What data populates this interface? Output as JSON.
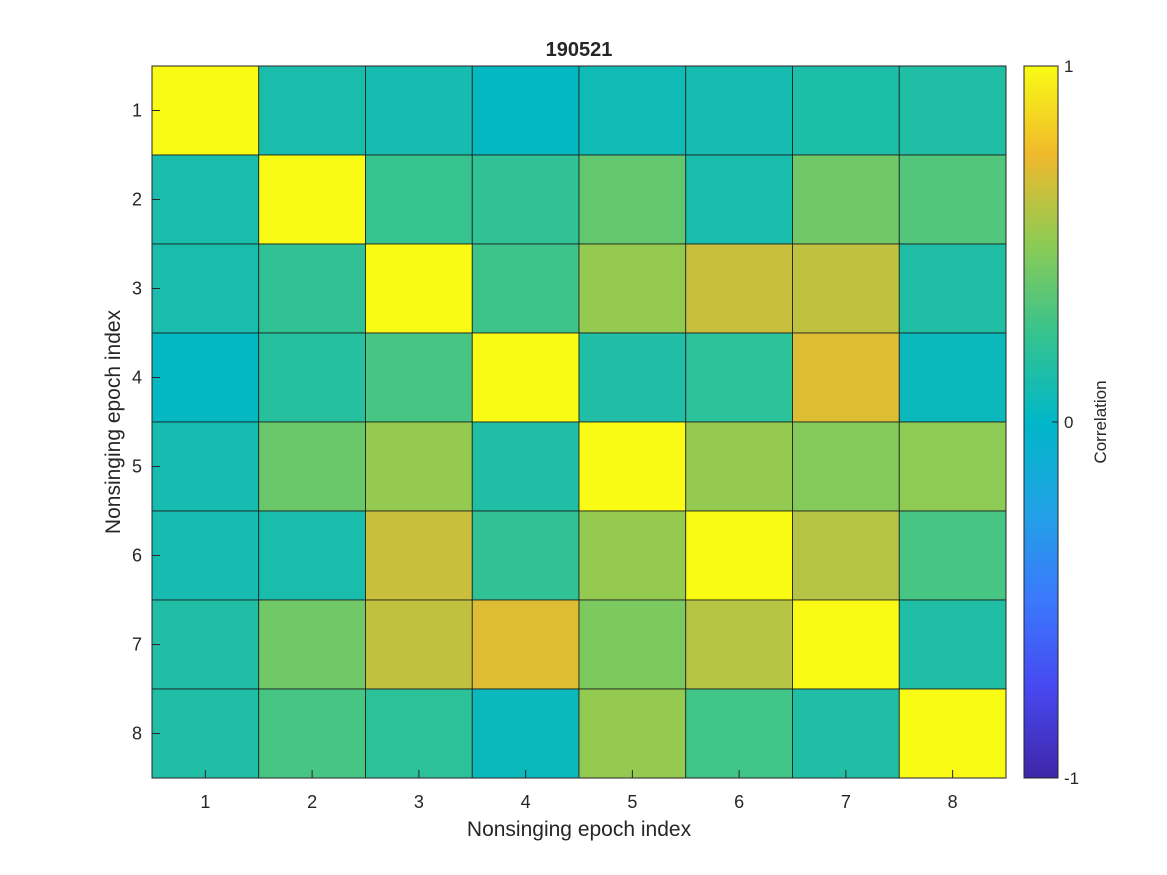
{
  "chart_data": {
    "type": "heatmap",
    "title": "190521",
    "xlabel": "Nonsinging epoch index",
    "ylabel": "Nonsinging epoch index",
    "x_categories": [
      "1",
      "2",
      "3",
      "4",
      "5",
      "6",
      "7",
      "8"
    ],
    "y_categories": [
      "1",
      "2",
      "3",
      "4",
      "5",
      "6",
      "7",
      "8"
    ],
    "matrix": [
      [
        1.0,
        0.12,
        0.1,
        0.02,
        0.08,
        0.1,
        0.13,
        0.15
      ],
      [
        0.12,
        1.0,
        0.25,
        0.22,
        0.38,
        0.12,
        0.42,
        0.33
      ],
      [
        0.12,
        0.22,
        1.0,
        0.27,
        0.52,
        0.65,
        0.63,
        0.15
      ],
      [
        0.02,
        0.18,
        0.3,
        1.0,
        0.15,
        0.2,
        0.7,
        0.05
      ],
      [
        0.1,
        0.4,
        0.52,
        0.15,
        1.0,
        0.52,
        0.47,
        0.5
      ],
      [
        0.1,
        0.12,
        0.65,
        0.22,
        0.52,
        1.0,
        0.6,
        0.3
      ],
      [
        0.15,
        0.42,
        0.63,
        0.7,
        0.45,
        0.6,
        1.0,
        0.15
      ],
      [
        0.15,
        0.3,
        0.2,
        0.05,
        0.52,
        0.28,
        0.15,
        1.0
      ]
    ],
    "colorbar": {
      "label": "Correlation",
      "range": [
        -1,
        1
      ],
      "ticks": [
        {
          "value": 1,
          "label": "1"
        },
        {
          "value": 0,
          "label": "0"
        },
        {
          "value": -1,
          "label": "-1"
        }
      ],
      "colormap": "parula"
    },
    "grid": false,
    "legend": "none"
  }
}
